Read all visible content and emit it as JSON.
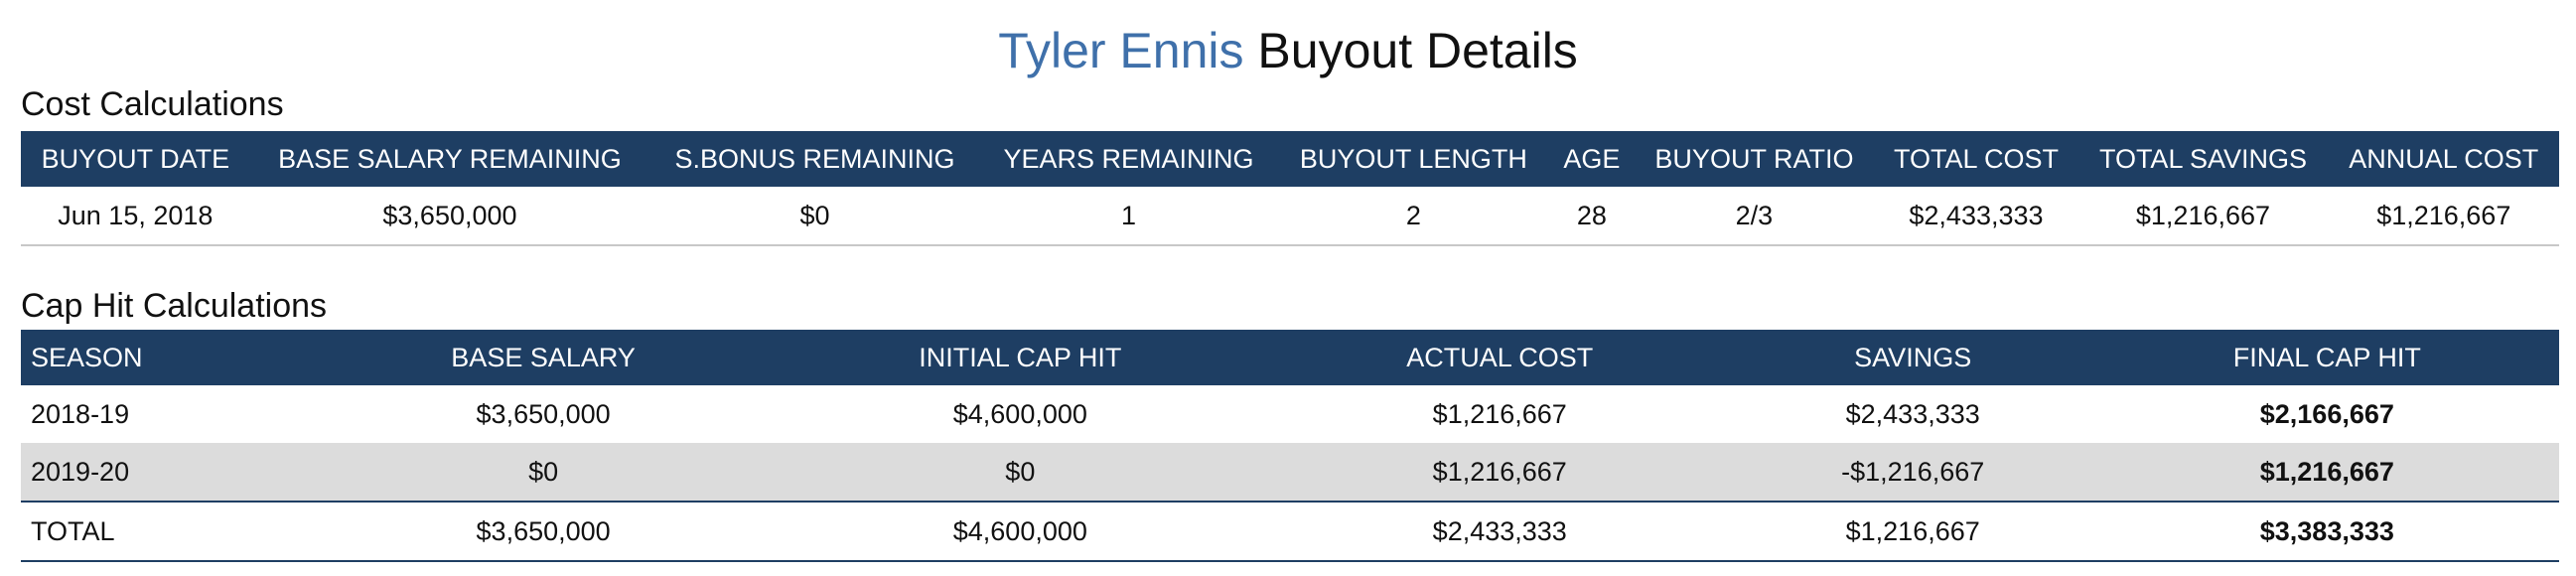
{
  "header": {
    "player": "Tyler Ennis",
    "title": "Buyout Details"
  },
  "cost": {
    "label": "Cost Calculations",
    "headers": [
      "BUYOUT DATE",
      "BASE SALARY REMAINING",
      "S.BONUS REMAINING",
      "YEARS REMAINING",
      "BUYOUT LENGTH",
      "AGE",
      "BUYOUT RATIO",
      "TOTAL COST",
      "TOTAL SAVINGS",
      "ANNUAL COST"
    ],
    "rows": [
      [
        "Jun 15, 2018",
        "$3,650,000",
        "$0",
        "1",
        "2",
        "28",
        "2/3",
        "$2,433,333",
        "$1,216,667",
        "$1,216,667"
      ]
    ]
  },
  "cap": {
    "label": "Cap Hit Calculations",
    "headers": [
      "SEASON",
      "BASE SALARY",
      "INITIAL CAP HIT",
      "ACTUAL COST",
      "SAVINGS",
      "FINAL CAP HIT"
    ],
    "rows": [
      [
        "2018-19",
        "$3,650,000",
        "$4,600,000",
        "$1,216,667",
        "$2,433,333",
        "$2,166,667"
      ],
      [
        "2019-20",
        "$0",
        "$0",
        "$1,216,667",
        "-$1,216,667",
        "$1,216,667"
      ],
      [
        "TOTAL",
        "$3,650,000",
        "$4,600,000",
        "$2,433,333",
        "$1,216,667",
        "$3,383,333"
      ]
    ]
  }
}
